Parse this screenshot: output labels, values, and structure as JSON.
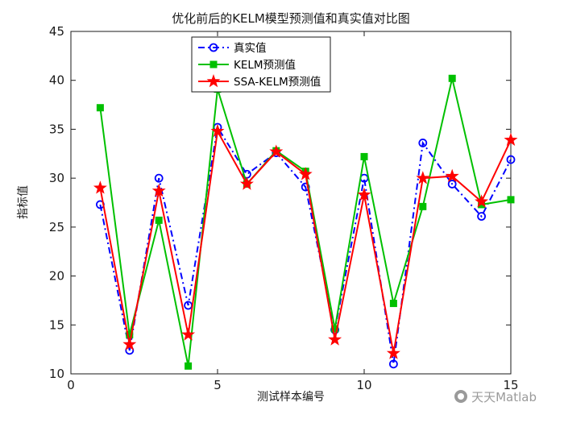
{
  "figure": {
    "background": "#ffffff",
    "axis_color": "#1a1a1a"
  },
  "watermark": {
    "text": "天天Matlab"
  },
  "chart_data": {
    "type": "line",
    "title": "优化前后的KELM模型预测值和真实值对比图",
    "xlabel": "测试样本编号",
    "ylabel": "指标值",
    "xlim": [
      0,
      15
    ],
    "ylim": [
      10,
      45
    ],
    "xticks": [
      0,
      5,
      10,
      15
    ],
    "yticks": [
      10,
      15,
      20,
      25,
      30,
      35,
      40,
      45
    ],
    "grid": false,
    "legend_position": "top-center-left",
    "x": [
      1,
      2,
      3,
      4,
      5,
      6,
      7,
      8,
      9,
      10,
      11,
      12,
      13,
      14,
      15
    ],
    "series": [
      {
        "name": "真实值",
        "color": "#0000ff",
        "line_style": "dash-dot",
        "marker": "circle",
        "values": [
          27.3,
          12.4,
          30.0,
          17.0,
          35.2,
          30.4,
          32.6,
          29.1,
          14.5,
          30.0,
          11.0,
          33.6,
          29.4,
          26.1,
          31.9
        ]
      },
      {
        "name": "KELM预测值",
        "color": "#00c000",
        "line_style": "solid",
        "marker": "square",
        "values": [
          37.2,
          14.0,
          25.7,
          10.8,
          39.1,
          29.4,
          32.8,
          30.7,
          14.6,
          32.2,
          17.2,
          27.1,
          40.2,
          27.3,
          27.8
        ]
      },
      {
        "name": "SSA-KELM预测值",
        "color": "#ff0000",
        "line_style": "solid",
        "marker": "star",
        "values": [
          29.0,
          13.0,
          28.7,
          14.0,
          34.8,
          29.4,
          32.7,
          30.4,
          13.5,
          28.3,
          12.1,
          30.0,
          30.2,
          27.6,
          33.9
        ]
      }
    ]
  }
}
